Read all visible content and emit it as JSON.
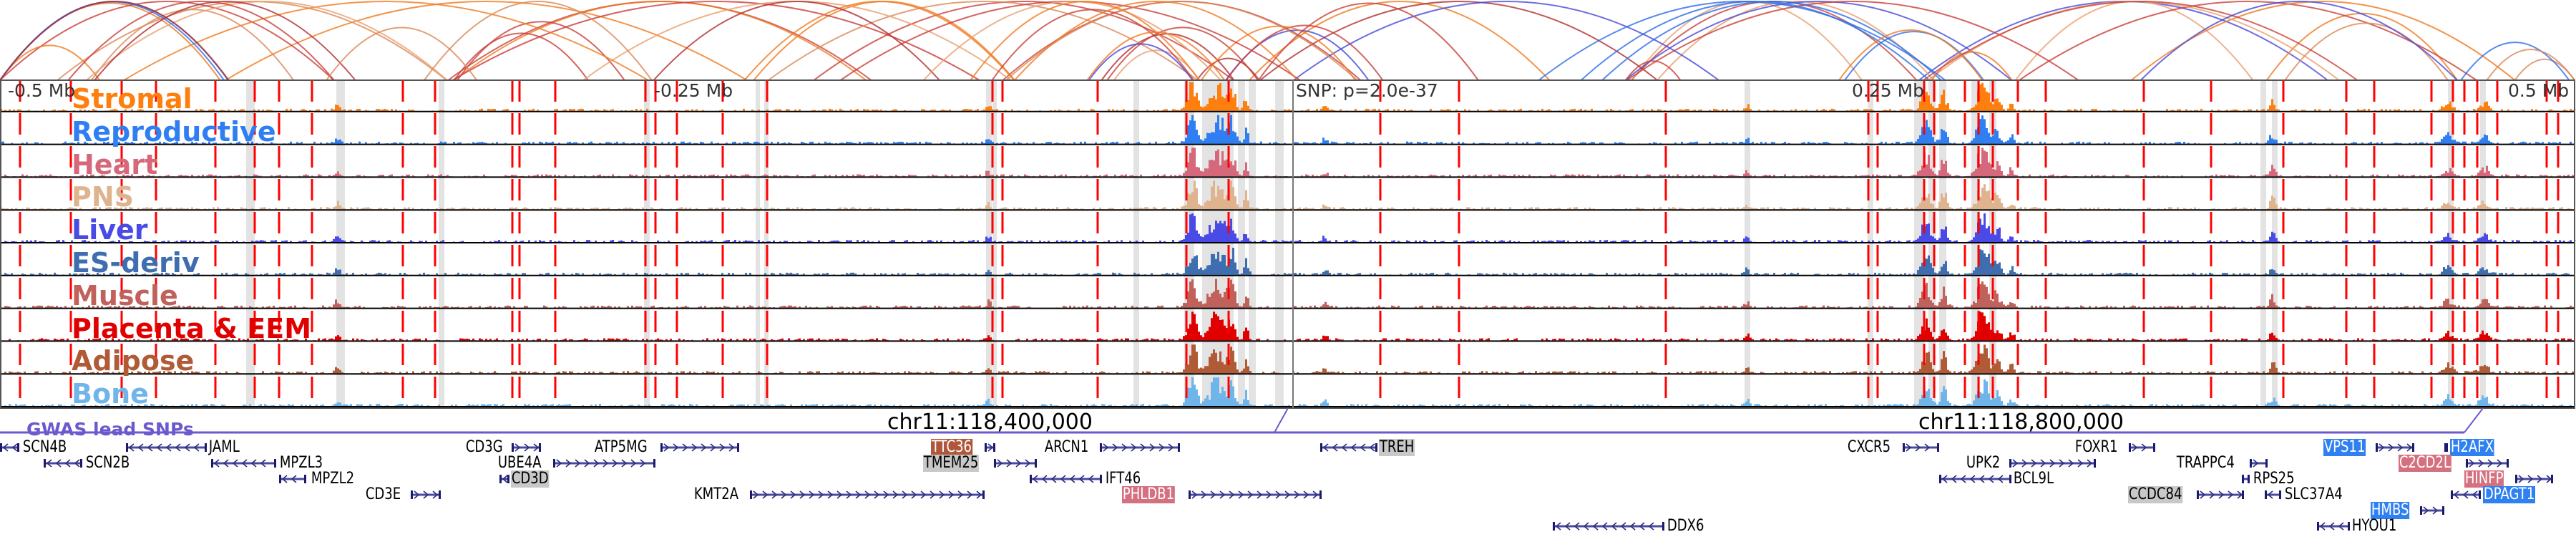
{
  "axis": {
    "left": "-0.5 Mb",
    "left_mid": "-0.25 Mb",
    "snp": "SNP: p=2.0e-37",
    "right_mid": "0.25 Mb",
    "right": "0.5 Mb"
  },
  "tracks": [
    {
      "label": "Stromal",
      "color": "#ff7f0e"
    },
    {
      "label": "Reproductive",
      "color": "#2f7ff2"
    },
    {
      "label": "Heart",
      "color": "#d5697b"
    },
    {
      "label": "PNS",
      "color": "#deb38d"
    },
    {
      "label": "Liver",
      "color": "#4a4ae6"
    },
    {
      "label": "ES-deriv",
      "color": "#3e6eaf"
    },
    {
      "label": "Muscle",
      "color": "#c0615c"
    },
    {
      "label": "Placenta & EEM",
      "color": "#e00000"
    },
    {
      "label": "Adipose",
      "color": "#b05a36"
    },
    {
      "label": "Bone",
      "color": "#70b5ea"
    }
  ],
  "coordinates": {
    "left": "chr11:118,400,000",
    "right": "chr11:118,800,000"
  },
  "gwas": {
    "label": "GWAS lead SNPs",
    "color": "#6a5acd"
  },
  "genes": [
    {
      "name": "SCN4B",
      "strand": "-",
      "highlight": null
    },
    {
      "name": "SCN2B",
      "strand": "-",
      "highlight": null
    },
    {
      "name": "JAML",
      "strand": "-",
      "highlight": null
    },
    {
      "name": "MPZL3",
      "strand": "-",
      "highlight": null
    },
    {
      "name": "MPZL2",
      "strand": "-",
      "highlight": null
    },
    {
      "name": "CD3E",
      "strand": "+",
      "highlight": null
    },
    {
      "name": "CD3G",
      "strand": "+",
      "highlight": null
    },
    {
      "name": "UBE4A",
      "strand": "+",
      "highlight": null
    },
    {
      "name": "CD3D",
      "strand": "-",
      "highlight": "#c8c8c8"
    },
    {
      "name": "ATP5MG",
      "strand": "+",
      "highlight": null
    },
    {
      "name": "KMT2A",
      "strand": "+",
      "highlight": null
    },
    {
      "name": "TTC36",
      "strand": "+",
      "highlight": "#b0573a"
    },
    {
      "name": "TMEM25",
      "strand": "+",
      "highlight": "#c8c8c8"
    },
    {
      "name": "ARCN1",
      "strand": "+",
      "highlight": null
    },
    {
      "name": "IFT46",
      "strand": "-",
      "highlight": null
    },
    {
      "name": "PHLDB1",
      "strand": "+",
      "highlight": "#d4707f"
    },
    {
      "name": "TREH",
      "strand": "-",
      "highlight": "#c8c8c8"
    },
    {
      "name": "DDX6",
      "strand": "-",
      "highlight": null
    },
    {
      "name": "CXCR5",
      "strand": "+",
      "highlight": null
    },
    {
      "name": "UPK2",
      "strand": "+",
      "highlight": null
    },
    {
      "name": "BCL9L",
      "strand": "-",
      "highlight": null
    },
    {
      "name": "FOXR1",
      "strand": "+",
      "highlight": null
    },
    {
      "name": "TRAPPC4",
      "strand": "+",
      "highlight": null
    },
    {
      "name": "RPS25",
      "strand": "-",
      "highlight": null
    },
    {
      "name": "CCDC84",
      "strand": "+",
      "highlight": "#c8c8c8"
    },
    {
      "name": "SLC37A4",
      "strand": "-",
      "highlight": null
    },
    {
      "name": "VPS11",
      "strand": "+",
      "highlight": "#2f80f0"
    },
    {
      "name": "H2AFX",
      "strand": "+",
      "highlight": "#2f80f0"
    },
    {
      "name": "C2CD2L",
      "strand": "+",
      "highlight": "#d4707f"
    },
    {
      "name": "HINFP",
      "strand": "+",
      "highlight": "#d4707f"
    },
    {
      "name": "DPAGT1",
      "strand": "-",
      "highlight": "#2f80f0"
    },
    {
      "name": "HMBS",
      "strand": "+",
      "highlight": "#2f80f0"
    },
    {
      "name": "HYOU1",
      "strand": "-",
      "highlight": null
    }
  ]
}
